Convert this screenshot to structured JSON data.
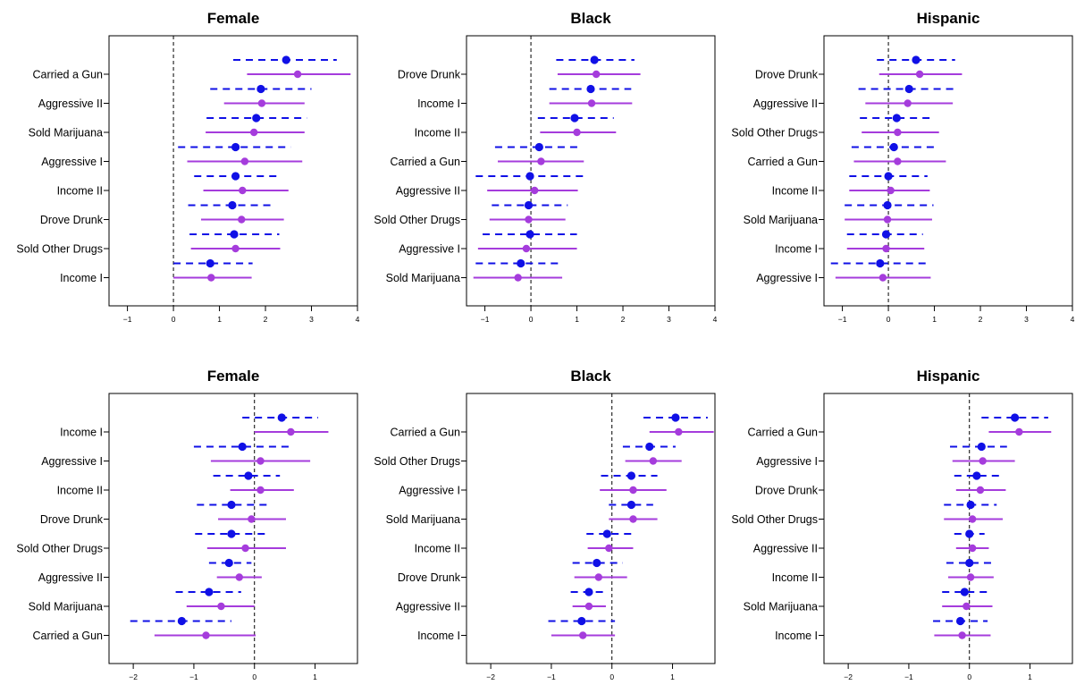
{
  "colors": {
    "series_a": "#1010e6",
    "series_b": "#a53cdc"
  },
  "chart_data": [
    {
      "type": "forest",
      "title": "Female",
      "xlim": [
        -1.4,
        4.0
      ],
      "xticks": [
        -1,
        0,
        1,
        2,
        3,
        4
      ],
      "reference_line": 0,
      "categories": [
        "Carried a Gun",
        "Aggressive II",
        "Sold Marijuana",
        "Aggressive I",
        "Income II",
        "Drove Drunk",
        "Sold Other Drugs",
        "Income I"
      ],
      "series": [
        {
          "style": "dashed",
          "estimate": [
            2.45,
            1.9,
            1.8,
            1.35,
            1.35,
            1.28,
            1.32,
            0.8
          ],
          "lower": [
            1.3,
            0.8,
            0.72,
            0.1,
            0.45,
            0.32,
            0.35,
            0.0
          ],
          "upper": [
            3.55,
            3.0,
            2.9,
            2.55,
            2.3,
            2.2,
            2.3,
            1.72
          ]
        },
        {
          "style": "solid",
          "estimate": [
            2.7,
            1.92,
            1.75,
            1.55,
            1.5,
            1.48,
            1.35,
            0.82
          ],
          "lower": [
            1.6,
            1.1,
            0.7,
            0.3,
            0.65,
            0.6,
            0.38,
            0.0
          ],
          "upper": [
            3.85,
            2.85,
            2.85,
            2.8,
            2.5,
            2.4,
            2.32,
            1.7
          ]
        }
      ]
    },
    {
      "type": "forest",
      "title": "Black",
      "xlim": [
        -1.4,
        4.0
      ],
      "xticks": [
        -1,
        0,
        1,
        2,
        3,
        4
      ],
      "reference_line": 0,
      "categories": [
        "Drove Drunk",
        "Income I",
        "Income II",
        "Carried a Gun",
        "Aggressive II",
        "Sold Other Drugs",
        "Aggressive I",
        "Sold Marijuana"
      ],
      "series": [
        {
          "style": "dashed",
          "estimate": [
            1.38,
            1.3,
            0.95,
            0.18,
            -0.02,
            -0.05,
            -0.02,
            -0.22
          ],
          "lower": [
            0.55,
            0.4,
            0.15,
            -0.78,
            -1.2,
            -0.85,
            -1.05,
            -1.2
          ],
          "upper": [
            2.25,
            2.18,
            1.8,
            1.12,
            1.15,
            0.8,
            1.0,
            0.7
          ]
        },
        {
          "style": "solid",
          "estimate": [
            1.42,
            1.32,
            1.0,
            0.22,
            0.08,
            -0.05,
            -0.1,
            -0.28
          ],
          "lower": [
            0.58,
            0.4,
            0.2,
            -0.72,
            -0.95,
            -0.9,
            -1.15,
            -1.25
          ],
          "upper": [
            2.38,
            2.2,
            1.85,
            1.15,
            1.02,
            0.75,
            1.0,
            0.68
          ]
        }
      ]
    },
    {
      "type": "forest",
      "title": "Hispanic",
      "xlim": [
        -1.4,
        4.0
      ],
      "xticks": [
        -1,
        0,
        1,
        2,
        3,
        4
      ],
      "reference_line": 0,
      "categories": [
        "Drove Drunk",
        "Aggressive II",
        "Sold Other Drugs",
        "Carried a Gun",
        "Income II",
        "Sold Marijuana",
        "Income I",
        "Aggressive I"
      ],
      "series": [
        {
          "style": "dashed",
          "estimate": [
            0.6,
            0.45,
            0.18,
            0.12,
            0.0,
            -0.02,
            -0.05,
            -0.18
          ],
          "lower": [
            -0.25,
            -0.65,
            -0.62,
            -0.8,
            -0.85,
            -0.95,
            -0.9,
            -1.25
          ],
          "upper": [
            1.45,
            1.52,
            0.98,
            1.05,
            0.85,
            0.98,
            0.75,
            0.82
          ]
        },
        {
          "style": "solid",
          "estimate": [
            0.68,
            0.42,
            0.2,
            0.2,
            0.05,
            -0.02,
            -0.05,
            -0.12
          ],
          "lower": [
            -0.2,
            -0.5,
            -0.58,
            -0.75,
            -0.85,
            -0.95,
            -0.9,
            -1.15
          ],
          "upper": [
            1.6,
            1.4,
            1.1,
            1.25,
            0.9,
            0.95,
            0.78,
            0.92
          ]
        }
      ]
    },
    {
      "type": "forest",
      "title": "Female",
      "xlim": [
        -2.4,
        1.7
      ],
      "xticks": [
        -2,
        -1,
        0,
        1
      ],
      "reference_line": 0,
      "categories": [
        "Income I",
        "Aggressive I",
        "Income II",
        "Drove Drunk",
        "Sold Other Drugs",
        "Aggressive II",
        "Sold Marijuana",
        "Carried a Gun"
      ],
      "series": [
        {
          "style": "dashed",
          "estimate": [
            0.45,
            -0.2,
            -0.1,
            -0.38,
            -0.38,
            -0.42,
            -0.75,
            -1.2
          ],
          "lower": [
            -0.2,
            -1.0,
            -0.68,
            -0.95,
            -0.98,
            -0.75,
            -1.3,
            -2.05
          ],
          "upper": [
            1.05,
            0.58,
            0.42,
            0.25,
            0.25,
            -0.05,
            -0.22,
            -0.38
          ]
        },
        {
          "style": "solid",
          "estimate": [
            0.6,
            0.1,
            0.1,
            -0.05,
            -0.15,
            -0.25,
            -0.55,
            -0.8
          ],
          "lower": [
            0.0,
            -0.72,
            -0.4,
            -0.6,
            -0.78,
            -0.62,
            -1.12,
            -1.65
          ],
          "upper": [
            1.22,
            0.92,
            0.65,
            0.52,
            0.52,
            0.12,
            0.0,
            0.02
          ]
        }
      ]
    },
    {
      "type": "forest",
      "title": "Black",
      "xlim": [
        -2.4,
        1.7
      ],
      "xticks": [
        -2,
        -1,
        0,
        1
      ],
      "reference_line": 0,
      "categories": [
        "Carried a Gun",
        "Sold Other Drugs",
        "Aggressive I",
        "Sold Marijuana",
        "Income II",
        "Drove Drunk",
        "Aggressive II",
        "Income I"
      ],
      "series": [
        {
          "style": "dashed",
          "estimate": [
            1.05,
            0.62,
            0.32,
            0.32,
            -0.08,
            -0.25,
            -0.38,
            -0.5
          ],
          "lower": [
            0.52,
            0.18,
            -0.18,
            -0.05,
            -0.42,
            -0.65,
            -0.68,
            -1.05
          ],
          "upper": [
            1.58,
            1.05,
            0.75,
            0.68,
            0.32,
            0.18,
            -0.08,
            0.05
          ]
        },
        {
          "style": "solid",
          "estimate": [
            1.1,
            0.68,
            0.35,
            0.35,
            -0.05,
            -0.22,
            -0.38,
            -0.48
          ],
          "lower": [
            0.62,
            0.22,
            -0.2,
            -0.05,
            -0.4,
            -0.62,
            -0.65,
            -1.0
          ],
          "upper": [
            1.68,
            1.15,
            0.9,
            0.75,
            0.35,
            0.25,
            -0.1,
            0.05
          ]
        }
      ]
    },
    {
      "type": "forest",
      "title": "Hispanic",
      "xlim": [
        -2.4,
        1.7
      ],
      "xticks": [
        -2,
        -1,
        0,
        1
      ],
      "reference_line": 0,
      "categories": [
        "Carried a Gun",
        "Aggressive I",
        "Drove Drunk",
        "Sold Other Drugs",
        "Aggressive II",
        "Income II",
        "Sold Marijuana",
        "Income I"
      ],
      "series": [
        {
          "style": "dashed",
          "estimate": [
            0.75,
            0.2,
            0.12,
            0.02,
            0.0,
            0.0,
            -0.08,
            -0.15
          ],
          "lower": [
            0.2,
            -0.32,
            -0.25,
            -0.42,
            -0.25,
            -0.38,
            -0.45,
            -0.6
          ],
          "upper": [
            1.3,
            0.62,
            0.5,
            0.45,
            0.25,
            0.38,
            0.3,
            0.3
          ]
        },
        {
          "style": "solid",
          "estimate": [
            0.82,
            0.22,
            0.18,
            0.05,
            0.05,
            0.02,
            -0.05,
            -0.12
          ],
          "lower": [
            0.32,
            -0.28,
            -0.22,
            -0.42,
            -0.22,
            -0.35,
            -0.45,
            -0.58
          ],
          "upper": [
            1.35,
            0.75,
            0.6,
            0.55,
            0.32,
            0.4,
            0.38,
            0.35
          ]
        }
      ]
    }
  ]
}
